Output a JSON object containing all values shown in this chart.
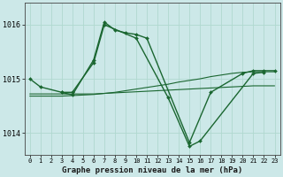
{
  "title": "Graphe pression niveau de la mer (hPa)",
  "background_color": "#cce8e8",
  "grid_color": "#b0d8d0",
  "line_color": "#1a6630",
  "ylim": [
    1013.6,
    1016.4
  ],
  "yticks": [
    1014,
    1015,
    1016
  ],
  "ytick_labels": [
    "1014",
    "1015",
    "1016"
  ],
  "x_ticks": [
    0,
    1,
    2,
    3,
    4,
    5,
    6,
    7,
    8,
    9,
    10,
    11,
    12,
    13,
    14,
    15,
    16,
    17,
    18,
    19,
    20,
    21,
    22,
    23
  ],
  "series": [
    {
      "x": [
        0,
        1,
        3,
        4,
        6,
        7,
        8,
        9,
        10,
        11,
        15,
        17,
        20,
        21,
        22,
        23
      ],
      "y": [
        1015.0,
        1014.85,
        1014.75,
        1014.7,
        1015.35,
        1016.05,
        1015.9,
        1015.85,
        1015.82,
        1015.75,
        1013.82,
        1014.75,
        1015.1,
        1015.15,
        1015.15,
        1015.15
      ],
      "marker": true,
      "lw": 1.0
    },
    {
      "x": [
        3,
        4,
        6,
        7,
        10,
        13,
        15,
        16,
        21,
        22
      ],
      "y": [
        1014.75,
        1014.75,
        1015.3,
        1016.0,
        1015.75,
        1014.65,
        1013.75,
        1013.85,
        1015.1,
        1015.12
      ],
      "marker": true,
      "lw": 1.0
    },
    {
      "x": [
        0,
        1,
        2,
        3,
        4,
        5,
        6,
        7,
        8,
        9,
        10,
        11,
        12,
        13,
        14,
        15,
        16,
        17,
        18,
        19,
        20,
        21,
        22,
        23
      ],
      "y": [
        1014.72,
        1014.72,
        1014.72,
        1014.72,
        1014.72,
        1014.72,
        1014.72,
        1014.73,
        1014.74,
        1014.75,
        1014.76,
        1014.77,
        1014.78,
        1014.79,
        1014.8,
        1014.81,
        1014.82,
        1014.83,
        1014.84,
        1014.85,
        1014.86,
        1014.87,
        1014.87,
        1014.87
      ],
      "marker": false,
      "lw": 0.8
    },
    {
      "x": [
        0,
        1,
        2,
        3,
        4,
        5,
        6,
        7,
        8,
        9,
        10,
        11,
        12,
        13,
        14,
        15,
        16,
        17,
        18,
        19,
        20,
        21,
        22,
        23
      ],
      "y": [
        1014.68,
        1014.68,
        1014.68,
        1014.68,
        1014.69,
        1014.7,
        1014.71,
        1014.73,
        1014.75,
        1014.78,
        1014.81,
        1014.84,
        1014.87,
        1014.9,
        1014.94,
        1014.97,
        1015.0,
        1015.04,
        1015.07,
        1015.1,
        1015.12,
        1015.13,
        1015.13,
        1015.13
      ],
      "marker": false,
      "lw": 0.8
    }
  ]
}
